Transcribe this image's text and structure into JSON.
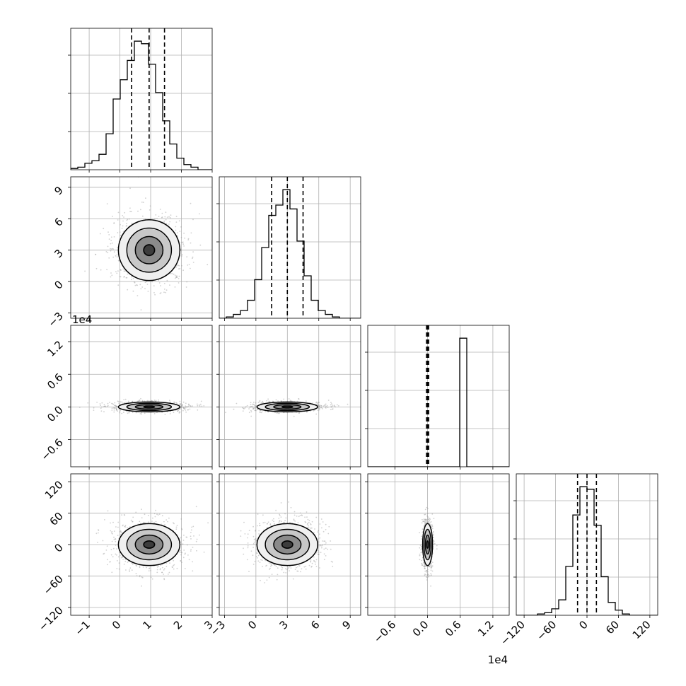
{
  "chart_data": {
    "type": "corner",
    "grid": true,
    "style": {
      "hist_color": "#000000",
      "quantile_line_color": "#000000",
      "scatter_color": "#9a9a9a",
      "contour_color": "#000000",
      "grid_color": "#b0b0b0"
    },
    "parameters": [
      {
        "id": "p1",
        "range": [
          -1.6,
          3.0
        ],
        "ticks": [
          -1,
          0,
          1,
          2,
          3
        ],
        "tick_labels": [
          "−1",
          "0",
          "1",
          "2",
          "3"
        ],
        "offset_text": "",
        "mean": 0.95,
        "sd": 0.5,
        "quantiles": [
          0.38,
          0.95,
          1.45
        ],
        "hist_counts": [
          1,
          2,
          5,
          7,
          12,
          28,
          55,
          70,
          85,
          100,
          98,
          82,
          60,
          38,
          20,
          9,
          4,
          2,
          0,
          0
        ]
      },
      {
        "id": "p2",
        "range": [
          -3.5,
          10.0
        ],
        "ticks": [
          -3,
          0,
          3,
          6,
          9
        ],
        "tick_labels": [
          "−3",
          "0",
          "3",
          "6",
          "9"
        ],
        "offset_text": "",
        "mean": 3.0,
        "sd": 1.45,
        "quantiles": [
          1.5,
          3.0,
          4.5
        ],
        "hist_counts": [
          0,
          1,
          3,
          6,
          14,
          30,
          55,
          80,
          88,
          100,
          85,
          60,
          33,
          14,
          6,
          3,
          1,
          0,
          0,
          0
        ]
      },
      {
        "id": "p3",
        "range": [
          -11000,
          15000
        ],
        "ticks": [
          -6000,
          0,
          6000,
          12000
        ],
        "tick_labels": [
          "−0.6",
          "0.0",
          "0.6",
          "1.2"
        ],
        "offset_text": "1e4",
        "mean": 0,
        "sd": 400,
        "quantiles": [
          -200,
          0,
          200
        ],
        "hist_counts": [
          0,
          0,
          0,
          0,
          0,
          0,
          0,
          0,
          0,
          0,
          0,
          0,
          0,
          100,
          0,
          0,
          0,
          0,
          0,
          0
        ]
      },
      {
        "id": "p4",
        "range": [
          -135,
          135
        ],
        "ticks": [
          -120,
          -60,
          0,
          60,
          120
        ],
        "tick_labels": [
          "−120",
          "−60",
          "0",
          "60",
          "120"
        ],
        "offset_text": "",
        "mean": 0,
        "sd": 20,
        "quantiles": [
          -18,
          0,
          18
        ],
        "hist_counts": [
          0,
          0,
          0,
          1,
          2,
          5,
          12,
          38,
          78,
          100,
          98,
          70,
          30,
          10,
          4,
          1,
          0,
          0,
          0,
          0
        ]
      }
    ]
  }
}
